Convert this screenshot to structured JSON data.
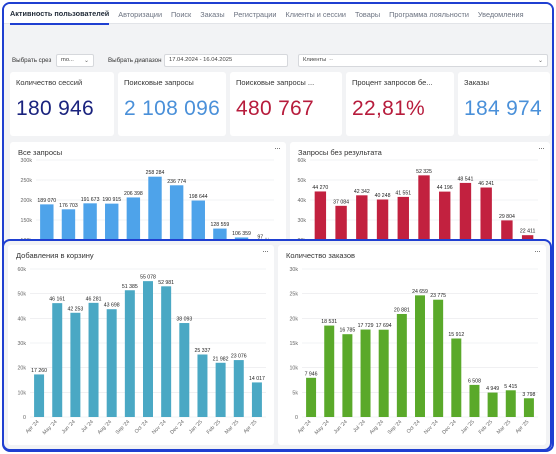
{
  "tabs": [
    "Активность пользователей",
    "Авторизации",
    "Поиск",
    "Заказы",
    "Регистрации",
    "Клиенты и сессии",
    "Товары",
    "Программа лояльности",
    "Уведомления"
  ],
  "filters": {
    "slice_label": "Выбрать срез",
    "slice_value": "mo...",
    "range_label": "Выбрать диапазон",
    "range_value": "17.04.2024 - 16.04.2025",
    "clients_label": "Клиенты",
    "clients_value": "--"
  },
  "kpis": [
    {
      "title": "Количество сессий",
      "value": "180 946",
      "color": "#1a237e"
    },
    {
      "title": "Поисковые запросы",
      "value": "2 108 096",
      "color": "#4a90d9"
    },
    {
      "title": "Поисковые запросы ...",
      "value": "480 767",
      "color": "#b71c3c"
    },
    {
      "title": "Процент запросов бе...",
      "value": "22,81%",
      "color": "#b71c3c"
    },
    {
      "title": "Заказы",
      "value": "184 974",
      "color": "#4a90d9"
    }
  ],
  "charts": {
    "all_queries": {
      "title": "Все запросы",
      "menu": "···",
      "color": "#4ea3ea",
      "ytick_labels": [
        "300k",
        "250k",
        "200k",
        "150k",
        "100k"
      ],
      "ylim": [
        90000,
        300000
      ],
      "ticks": [
        100000,
        150000,
        200000,
        250000,
        300000
      ],
      "values": [
        189070,
        176703,
        191673,
        190915,
        206398,
        258284,
        236774,
        198644,
        128559,
        106359,
        97000
      ],
      "labels": [
        "189 070",
        "176 703",
        "191 673",
        "190 915",
        "206 398",
        "258 284",
        "236 774",
        "198 644",
        "128 559",
        "106 359",
        "97 ..."
      ]
    },
    "no_result_queries": {
      "title": "Запросы без результата",
      "menu": "···",
      "color": "#c2213f",
      "ytick_labels": [
        "60k",
        "50k",
        "40k",
        "30k",
        "20k"
      ],
      "ylim": [
        18000,
        60000
      ],
      "ticks": [
        20000,
        30000,
        40000,
        50000,
        60000
      ],
      "values": [
        44270,
        37084,
        42342,
        40248,
        41551,
        52325,
        44196,
        48541,
        46241,
        29804,
        22411
      ],
      "labels": [
        "44 270",
        "37 084",
        "42 342",
        "40 248",
        "41 551",
        "52 325",
        "44 196",
        "48 541",
        "46 241",
        "29 804",
        "22 411"
      ]
    },
    "cart_adds": {
      "title": "Добавления в корзину",
      "menu": "···",
      "color": "#4aa8c4",
      "ytick_labels": [
        "60k",
        "50k",
        "40k",
        "30k",
        "20k",
        "10k",
        "0"
      ],
      "ylim": [
        0,
        60000
      ],
      "ticks": [
        0,
        10000,
        20000,
        30000,
        40000,
        50000,
        60000
      ],
      "x": [
        "Apr '24",
        "May '24",
        "Jun '24",
        "Jul '24",
        "Aug '24",
        "Sep '24",
        "Oct '24",
        "Nov '24",
        "Dec '24",
        "Jan '25",
        "Feb '25",
        "Mar '25",
        "Apr '25"
      ],
      "values": [
        17260,
        46161,
        42253,
        46281,
        43698,
        51385,
        55078,
        52981,
        38093,
        25337,
        21982,
        23076,
        14017
      ],
      "labels": [
        "17 260",
        "46 161",
        "42 253",
        "46 281",
        "43 698",
        "51 385",
        "55 078",
        "52 981",
        "38 093",
        "25 337",
        "21 982",
        "23 076",
        "14 017"
      ]
    },
    "orders_count": {
      "title": "Количество заказов",
      "menu": "···",
      "color": "#5aa92a",
      "ytick_labels": [
        "30k",
        "25k",
        "20k",
        "15k",
        "10k",
        "5k",
        "0"
      ],
      "ylim": [
        0,
        30000
      ],
      "ticks": [
        0,
        5000,
        10000,
        15000,
        20000,
        25000,
        30000
      ],
      "x": [
        "Apr '24",
        "May '24",
        "Jun '24",
        "Jul '24",
        "Aug '24",
        "Sep '24",
        "Oct '24",
        "Nov '24",
        "Dec '24",
        "Jan '25",
        "Feb '25",
        "Mar '25",
        "Apr '25"
      ],
      "values": [
        7946,
        18531,
        16785,
        17729,
        17694,
        20881,
        24659,
        23775,
        15912,
        6508,
        4949,
        5415,
        3798
      ],
      "labels": [
        "7 946",
        "18 531",
        "16 785",
        "17 729",
        "17 694",
        "20 881",
        "24 659",
        "23 775",
        "15 912",
        "6 508",
        "4 949",
        "5 415",
        "3 798"
      ]
    }
  },
  "chart_data": [
    {
      "type": "bar",
      "title": "Все запросы",
      "series": [
        {
          "values": [
            189070,
            176703,
            191673,
            190915,
            206398,
            258284,
            236774,
            198644,
            128559,
            106359,
            97000
          ]
        }
      ],
      "ylim": [
        90000,
        300000
      ]
    },
    {
      "type": "bar",
      "title": "Запросы без результата",
      "series": [
        {
          "values": [
            44270,
            37084,
            42342,
            40248,
            41551,
            52325,
            44196,
            48541,
            46241,
            29804,
            22411
          ]
        }
      ],
      "ylim": [
        18000,
        60000
      ]
    },
    {
      "type": "bar",
      "title": "Добавления в корзину",
      "categories": [
        "Apr '24",
        "May '24",
        "Jun '24",
        "Jul '24",
        "Aug '24",
        "Sep '24",
        "Oct '24",
        "Nov '24",
        "Dec '24",
        "Jan '25",
        "Feb '25",
        "Mar '25",
        "Apr '25"
      ],
      "series": [
        {
          "values": [
            17260,
            46161,
            42253,
            46281,
            43698,
            51385,
            55078,
            52981,
            38093,
            25337,
            21982,
            23076,
            14017
          ]
        }
      ],
      "ylim": [
        0,
        60000
      ]
    },
    {
      "type": "bar",
      "title": "Количество заказов",
      "categories": [
        "Apr '24",
        "May '24",
        "Jun '24",
        "Jul '24",
        "Aug '24",
        "Sep '24",
        "Oct '24",
        "Nov '24",
        "Dec '24",
        "Jan '25",
        "Feb '25",
        "Mar '25",
        "Apr '25"
      ],
      "series": [
        {
          "values": [
            7946,
            18531,
            16785,
            17729,
            17694,
            20881,
            24659,
            23775,
            15912,
            6508,
            4949,
            5415,
            3798
          ]
        }
      ],
      "ylim": [
        0,
        30000
      ]
    }
  ]
}
